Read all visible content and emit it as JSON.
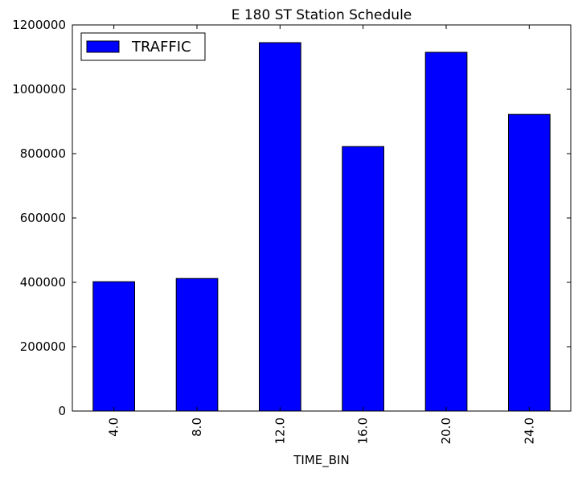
{
  "chart_data": {
    "type": "bar",
    "title": "E 180 ST Station Schedule",
    "xlabel": "TIME_BIN",
    "ylabel": "",
    "categories": [
      "4.0",
      "8.0",
      "12.0",
      "16.0",
      "20.0",
      "24.0"
    ],
    "series": [
      {
        "name": "TRAFFIC",
        "values": [
          402000,
          412000,
          1145000,
          822000,
          1115000,
          922000
        ],
        "color": "#0000ff"
      }
    ],
    "ylim": [
      0,
      1200000
    ],
    "yticks": [
      0,
      200000,
      400000,
      600000,
      800000,
      1000000,
      1200000
    ],
    "ytick_labels": [
      "0",
      "200000",
      "400000",
      "600000",
      "800000",
      "1000000",
      "1200000"
    ],
    "grid": false,
    "legend": {
      "position": "top-left",
      "entries": [
        "TRAFFIC"
      ]
    },
    "xtick_rotation": "vertical"
  }
}
